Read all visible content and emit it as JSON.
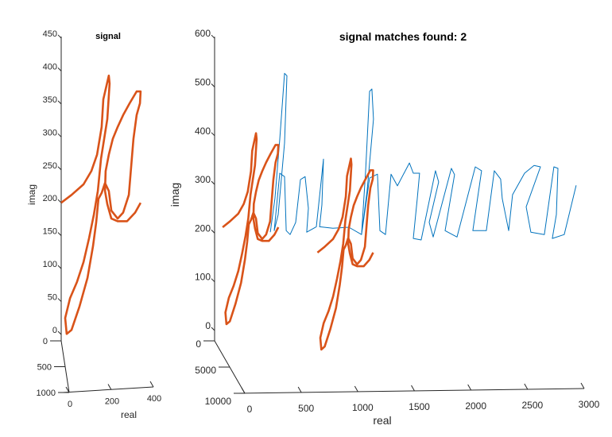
{
  "chart_data": [
    {
      "type": "line3d",
      "title": "signal",
      "xlabel": "real",
      "ylabel": "imag",
      "xticks": [
        "0",
        "200",
        "400"
      ],
      "yticks": [
        "0",
        "50",
        "100",
        "150",
        "200",
        "250",
        "300",
        "350",
        "400",
        "450"
      ],
      "zticks": [
        "0",
        "500",
        "1000"
      ],
      "xlim": [
        0,
        400
      ],
      "ylim": [
        0,
        450
      ],
      "zlim": [
        0,
        1000
      ],
      "grid": false,
      "series": [
        {
          "color": "#D95319",
          "real": [
            0,
            49,
            106,
            143,
            170,
            192,
            200,
            226,
            230,
            219,
            189,
            174,
            155,
            132,
            106,
            75,
            42,
            19,
            26,
            49,
            87,
            125,
            151,
            166,
            177,
            192,
            208,
            226,
            238,
            268,
            294,
            321,
            343,
            358,
            374,
            377,
            358,
            325,
            294,
            268,
            245,
            226,
            211,
            208,
            219,
            238,
            268,
            313,
            351,
            377
          ],
          "imag": [
            200,
            212,
            228,
            248,
            273,
            315,
            357,
            393,
            381,
            327,
            267,
            218,
            182,
            146,
            110,
            80,
            55,
            25,
            1,
            7,
            43,
            86,
            134,
            170,
            206,
            215,
            230,
            218,
            188,
            176,
            185,
            212,
            297,
            333,
            351,
            369,
            369,
            351,
            333,
            315,
            297,
            273,
            248,
            218,
            198,
            176,
            172,
            172,
            185,
            200
          ]
        }
      ]
    },
    {
      "type": "line3d",
      "title": "signal matches found: 2",
      "xlabel": "real",
      "ylabel": "imag",
      "xticks": [
        "0",
        "500",
        "1000",
        "1500",
        "2000",
        "2500",
        "3000"
      ],
      "yticks": [
        "0",
        "100",
        "200",
        "300",
        "400",
        "500",
        "600"
      ],
      "zticks": [
        "0",
        "5000",
        "10000"
      ],
      "xlim": [
        0,
        3000
      ],
      "ylim": [
        0,
        600
      ],
      "zlim": [
        0,
        10000
      ],
      "grid": false,
      "series": [
        {
          "color": "#0072BD",
          "real": [
            452,
            490,
            529,
            568,
            587,
            568,
            516,
            484,
            529,
            568,
            581,
            613,
            658,
            697,
            735,
            761,
            748,
            826,
            884,
            871,
            852,
            960,
            1090,
            1193,
            1226,
            1258,
            1277,
            1290,
            1238,
            1193,
            1258,
            1322,
            1342,
            1387,
            1432,
            1484,
            1581,
            1613,
            1664,
            1645,
            1613,
            1677,
            1793,
            1819,
            1742,
            1774,
            1922,
            1948,
            1871,
            1968,
            2116,
            2167,
            2096,
            2206,
            2270,
            2322,
            2335,
            2387,
            2419,
            2516,
            2593,
            2645,
            2529,
            2567,
            2677,
            2754,
            2787,
            2774,
            2741,
            2838,
            2935
          ],
          "imag": [
            202,
            271,
            393,
            528,
            523,
            385,
            238,
            205,
            323,
            316,
            205,
            197,
            222,
            310,
            316,
            251,
            202,
            213,
            352,
            258,
            213,
            210,
            212,
            197,
            327,
            491,
            496,
            434,
            287,
            197,
            313,
            321,
            205,
            197,
            321,
            297,
            344,
            323,
            323,
            271,
            189,
            186,
            328,
            305,
            222,
            192,
            333,
            320,
            205,
            192,
            336,
            328,
            205,
            205,
            328,
            311,
            271,
            205,
            279,
            323,
            339,
            336,
            254,
            202,
            197,
            336,
            333,
            238,
            189,
            197,
            298
          ]
        }
      ],
      "matches": [
        {
          "color": "#D95319",
          "real_offset": 65,
          "imag_offset": 12
        },
        {
          "color": "#D95319",
          "real_offset": 835,
          "imag_offset": -40
        }
      ]
    }
  ]
}
